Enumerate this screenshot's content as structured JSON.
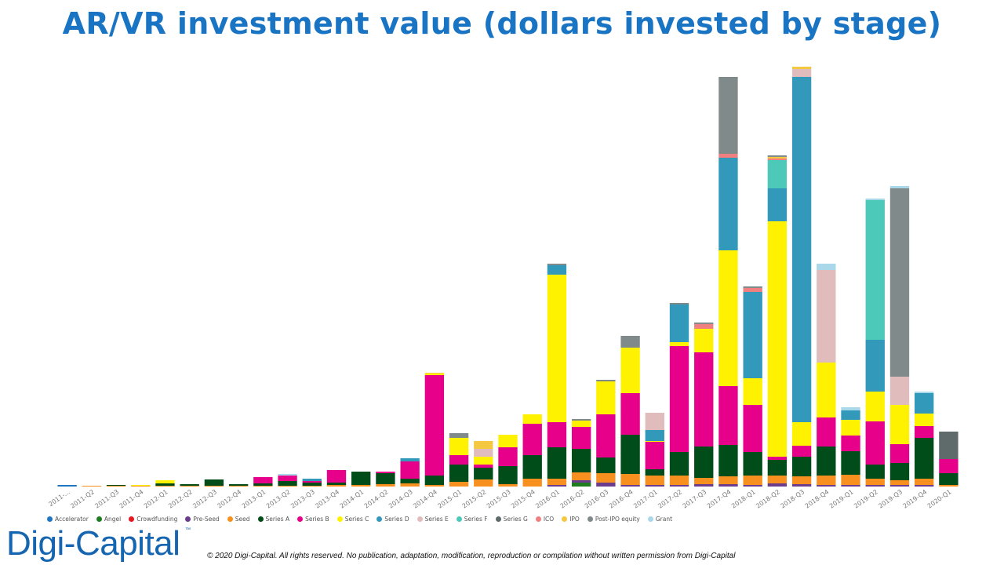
{
  "title": "AR/VR investment value (dollars invested by stage)",
  "logo_text": "Digi-Capital",
  "logo_tm": "™",
  "copyright": "© 2020 Digi-Capital. All rights reserved. No publication, adaptation, modification, reproduction or compilation without written permission from Digi-Capital",
  "legend": [
    {
      "name": "Accelerator",
      "color": "#1f77c4"
    },
    {
      "name": "Angel",
      "color": "#1e7d1e"
    },
    {
      "name": "Crowdfunding",
      "color": "#e8161f"
    },
    {
      "name": "Pre-Seed",
      "color": "#6b3d8c"
    },
    {
      "name": "Seed",
      "color": "#f7901e"
    },
    {
      "name": "Series A",
      "color": "#004d1a"
    },
    {
      "name": "Series B",
      "color": "#e6008a"
    },
    {
      "name": "Series C",
      "color": "#fff200"
    },
    {
      "name": "Series D",
      "color": "#3399bb"
    },
    {
      "name": "Series E",
      "color": "#e0bcbc"
    },
    {
      "name": "Series F",
      "color": "#4cc9b8"
    },
    {
      "name": "Series G",
      "color": "#5f6b6b"
    },
    {
      "name": "ICO",
      "color": "#f08080"
    },
    {
      "name": "IPO",
      "color": "#f5c842"
    },
    {
      "name": "Post-IPO equity",
      "color": "#808a8a"
    },
    {
      "name": "Grant",
      "color": "#a8d8ea"
    }
  ],
  "chart_data": {
    "type": "bar",
    "stacked": true,
    "categories": [
      "2011-...",
      "2011-Q2",
      "2011-Q3",
      "2011-Q4",
      "2012-Q1",
      "2012-Q2",
      "2012-Q3",
      "2012-Q4",
      "2013-Q1",
      "2013-Q2",
      "2013-Q3",
      "2013-Q4",
      "2014-Q1",
      "2014-Q2",
      "2014-Q3",
      "2014-Q4",
      "2015-Q1",
      "2015-Q2",
      "2015-Q3",
      "2015-Q4",
      "2016-Q1",
      "2016-Q2",
      "2016-Q3",
      "2016-Q4",
      "2017-Q1",
      "2017-Q2",
      "2017-Q3",
      "2017-Q4",
      "2018-Q1",
      "2018-Q2",
      "2018-Q3",
      "2018-Q4",
      "2019-Q1",
      "2019-Q2",
      "2019-Q3",
      "2019-Q4",
      "2020-Q1"
    ],
    "ylim": [
      0,
      540
    ],
    "grid": false,
    "legend_position": "bottom",
    "series": [
      {
        "name": "Accelerator",
        "color": "#1f77c4",
        "values": [
          2,
          0,
          0,
          0,
          0,
          0,
          0,
          0,
          0,
          0,
          0,
          0,
          0,
          0,
          0,
          0,
          0,
          0,
          0,
          0,
          0,
          0,
          0,
          0,
          0,
          0,
          0,
          0,
          0,
          0,
          0,
          0,
          0,
          0,
          0,
          0,
          0
        ]
      },
      {
        "name": "Angel",
        "color": "#1e7d1e",
        "values": [
          0,
          0,
          0,
          0,
          0,
          0,
          0,
          0,
          0,
          0,
          0,
          0,
          0,
          0,
          0,
          0,
          0,
          0,
          0,
          0,
          0,
          5,
          0,
          0,
          0,
          0,
          0,
          0,
          0,
          0,
          0,
          0,
          0,
          0,
          0,
          0,
          0
        ]
      },
      {
        "name": "Crowdfunding",
        "color": "#e8161f",
        "values": [
          0,
          0,
          0,
          0,
          0,
          0,
          0,
          0,
          0,
          0,
          0,
          0,
          0,
          0,
          0,
          0,
          0,
          0,
          0,
          0,
          0,
          0,
          0,
          0,
          0,
          0,
          0,
          0,
          0,
          0,
          0,
          0,
          0,
          0,
          0,
          0,
          0
        ]
      },
      {
        "name": "Pre-Seed",
        "color": "#6b3d8c",
        "values": [
          0,
          0,
          0,
          0,
          0,
          0,
          0,
          0,
          0,
          0,
          0,
          0,
          0,
          0,
          0,
          0,
          0,
          0,
          0,
          0,
          2,
          3,
          5,
          2,
          2,
          2,
          3,
          3,
          2,
          4,
          3,
          2,
          2,
          2,
          2,
          2,
          0
        ]
      },
      {
        "name": "Seed",
        "color": "#f7901e",
        "values": [
          0,
          1,
          1,
          1,
          1,
          1,
          1,
          1,
          1,
          1,
          1,
          2,
          2,
          3,
          4,
          2,
          6,
          9,
          3,
          10,
          8,
          10,
          12,
          14,
          12,
          12,
          8,
          10,
          12,
          10,
          10,
          12,
          13,
          8,
          6,
          8,
          2
        ]
      },
      {
        "name": "Series A",
        "color": "#004d1a",
        "values": [
          0,
          0,
          1,
          0,
          3,
          2,
          8,
          2,
          3,
          6,
          4,
          3,
          17,
          14,
          6,
          12,
          22,
          15,
          23,
          30,
          40,
          30,
          20,
          50,
          8,
          30,
          40,
          40,
          30,
          20,
          25,
          37,
          30,
          18,
          22,
          52,
          15
        ]
      },
      {
        "name": "Series B",
        "color": "#e6008a",
        "values": [
          0,
          0,
          0,
          0,
          0,
          0,
          0,
          0,
          8,
          7,
          2,
          16,
          0,
          2,
          22,
          128,
          12,
          4,
          24,
          40,
          32,
          28,
          55,
          53,
          35,
          135,
          120,
          75,
          60,
          4,
          14,
          37,
          20,
          55,
          24,
          15,
          18
        ]
      },
      {
        "name": "Series C",
        "color": "#fff200",
        "values": [
          0,
          0,
          0,
          1,
          4,
          0,
          0,
          0,
          0,
          0,
          0,
          0,
          0,
          0,
          0,
          2,
          22,
          10,
          16,
          12,
          188,
          8,
          42,
          58,
          1,
          5,
          30,
          173,
          34,
          300,
          30,
          70,
          20,
          38,
          50,
          16,
          0
        ]
      },
      {
        "name": "Series D",
        "color": "#3399bb",
        "values": [
          0,
          0,
          0,
          0,
          0,
          0,
          0,
          0,
          0,
          0,
          3,
          0,
          0,
          0,
          4,
          0,
          0,
          0,
          0,
          0,
          12,
          0,
          0,
          0,
          14,
          48,
          0,
          118,
          110,
          42,
          440,
          0,
          12,
          66,
          0,
          26,
          0
        ]
      },
      {
        "name": "Series E",
        "color": "#e0bcbc",
        "values": [
          0,
          0,
          0,
          0,
          0,
          0,
          0,
          0,
          0,
          0,
          0,
          0,
          0,
          0,
          0,
          0,
          0,
          10,
          0,
          0,
          0,
          0,
          0,
          0,
          22,
          0,
          0,
          0,
          0,
          0,
          10,
          118,
          0,
          0,
          36,
          0,
          0
        ]
      },
      {
        "name": "Series F",
        "color": "#4cc9b8",
        "values": [
          0,
          0,
          0,
          0,
          0,
          0,
          0,
          0,
          0,
          0,
          0,
          0,
          0,
          0,
          0,
          0,
          0,
          0,
          0,
          0,
          0,
          0,
          0,
          0,
          0,
          0,
          0,
          0,
          0,
          36,
          0,
          0,
          0,
          178,
          0,
          0,
          0
        ]
      },
      {
        "name": "Series G",
        "color": "#5f6b6b",
        "values": [
          0,
          0,
          0,
          0,
          0,
          0,
          0,
          0,
          0,
          0,
          0,
          0,
          0,
          0,
          0,
          0,
          0,
          0,
          0,
          0,
          0,
          0,
          0,
          0,
          0,
          0,
          0,
          0,
          0,
          0,
          0,
          0,
          0,
          0,
          0,
          0,
          35
        ]
      },
      {
        "name": "ICO",
        "color": "#f08080",
        "values": [
          0,
          0,
          0,
          0,
          0,
          0,
          0,
          0,
          0,
          0,
          0,
          0,
          0,
          0,
          0,
          0,
          0,
          0,
          0,
          0,
          0,
          0,
          0,
          0,
          0,
          0,
          6,
          5,
          5,
          2,
          0,
          0,
          0,
          0,
          0,
          0,
          0
        ]
      },
      {
        "name": "IPO",
        "color": "#f5c842",
        "values": [
          0,
          0,
          0,
          0,
          0,
          0,
          0,
          0,
          0,
          0,
          0,
          0,
          0,
          0,
          0,
          1,
          0,
          10,
          0,
          0,
          0,
          0,
          0,
          0,
          0,
          0,
          0,
          0,
          0,
          2,
          3,
          0,
          0,
          0,
          0,
          0,
          0
        ]
      },
      {
        "name": "Post-IPO equity",
        "color": "#808a8a",
        "values": [
          0,
          0,
          0,
          0,
          0,
          0,
          0,
          0,
          0,
          0,
          0,
          0,
          0,
          0,
          0,
          0,
          6,
          0,
          0,
          0,
          2,
          2,
          2,
          15,
          0,
          2,
          2,
          98,
          2,
          2,
          0,
          0,
          0,
          0,
          240,
          0,
          0
        ]
      },
      {
        "name": "Grant",
        "color": "#a8d8ea",
        "values": [
          0,
          0,
          0,
          0,
          0,
          0,
          0,
          0,
          0,
          2,
          0,
          0,
          0,
          0,
          0,
          0,
          0,
          0,
          0,
          0,
          0,
          0,
          0,
          0,
          0,
          0,
          0,
          0,
          0,
          0,
          0,
          8,
          4,
          2,
          3,
          2,
          0
        ]
      }
    ]
  }
}
